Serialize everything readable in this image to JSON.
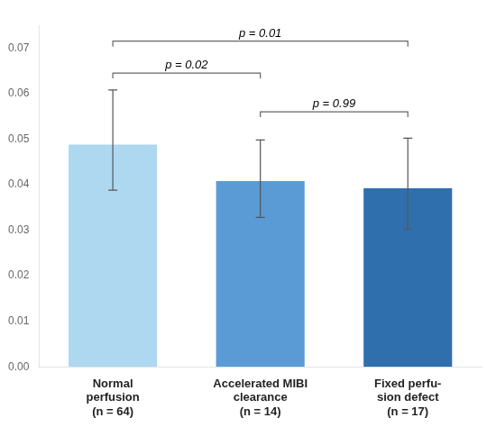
{
  "chart_data": {
    "type": "bar",
    "categories": [
      "Normal\nperfusion\n(n = 64)",
      "Accelerated MIBI\nclearance\n(n = 14)",
      "Fixed perfu-\nsion defect\n(n = 17)"
    ],
    "values": [
      0.0488,
      0.0408,
      0.0392
    ],
    "errors_upper": [
      0.012,
      0.009,
      0.011
    ],
    "errors_lower": [
      0.01,
      0.008,
      0.009
    ],
    "colors": [
      "#add8f0",
      "#5b9bd5",
      "#2f6fae"
    ],
    "ylim": [
      0.0,
      0.075
    ],
    "yticks": [
      {
        "value": 0.0,
        "label": "0.00"
      },
      0.01,
      0.02,
      0.03,
      0.04,
      0.05,
      0.06,
      0.07
    ],
    "annotations": [
      {
        "text": "p = 0.02",
        "x1": 0,
        "x2": 1,
        "y": 0.0645
      },
      {
        "text": "p = 0.01",
        "x1": 0,
        "x2": 2,
        "y": 0.0715
      },
      {
        "text": "p = 0.99",
        "x1": 1,
        "x2": 2,
        "y": 0.056
      }
    ],
    "grid": false
  }
}
